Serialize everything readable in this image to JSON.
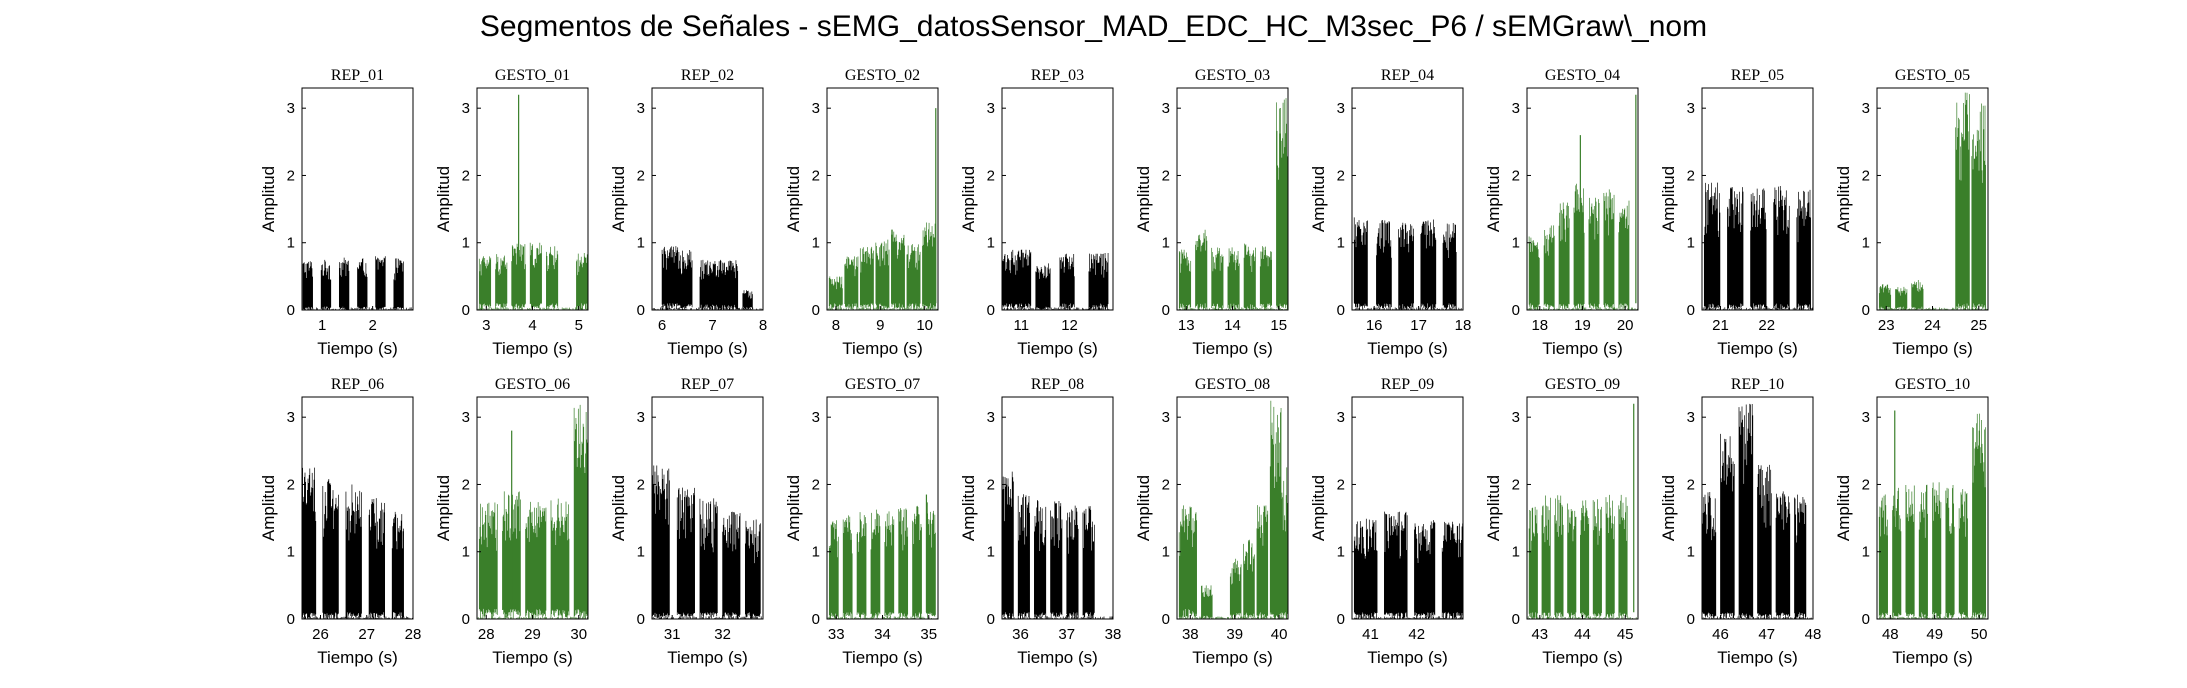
{
  "figure": {
    "title": "Segmentos de Señales - sEMG_datosSensor_MAD_EDC_HC_M3sec_P6 / sEMGraw\\_nom",
    "colors": {
      "rep": "#000000",
      "gesto": "#3a7f2a",
      "axis": "#000000"
    }
  },
  "chart_data": [
    {
      "type": "line",
      "title": "REP_01",
      "xlabel": "Tiempo (s)",
      "ylabel": "Amplitud",
      "xlim": [
        0.6,
        2.8
      ],
      "ylim": [
        0,
        3.3
      ],
      "xticks": [
        1,
        2
      ],
      "yticks": [
        0,
        1,
        2,
        3
      ],
      "color": "#000000",
      "bursts": [
        [
          0.62,
          0.82,
          0.75,
          0.05
        ],
        [
          0.98,
          1.18,
          0.75,
          0.05
        ],
        [
          1.34,
          1.54,
          0.78,
          0.05
        ],
        [
          1.7,
          1.9,
          0.78,
          0.05
        ],
        [
          2.06,
          2.26,
          0.8,
          0.05
        ],
        [
          2.42,
          2.62,
          0.78,
          0.05
        ]
      ]
    },
    {
      "type": "line",
      "title": "GESTO_01",
      "xlabel": "Tiempo (s)",
      "ylabel": "Amplitud",
      "xlim": [
        2.8,
        5.2
      ],
      "ylim": [
        0,
        3.3
      ],
      "xticks": [
        3,
        4,
        5
      ],
      "yticks": [
        0,
        1,
        2,
        3
      ],
      "color": "#3a7f2a",
      "bursts": [
        [
          2.85,
          3.1,
          0.82,
          0.1
        ],
        [
          3.2,
          3.45,
          0.85,
          0.1
        ],
        [
          3.55,
          3.85,
          1.0,
          0.1
        ],
        [
          3.95,
          4.2,
          1.0,
          0.1
        ],
        [
          4.3,
          4.55,
          0.95,
          0.1
        ],
        [
          4.95,
          5.2,
          0.85,
          0.1
        ]
      ],
      "spikes": [
        [
          3.7,
          3.2
        ]
      ]
    },
    {
      "type": "line",
      "title": "REP_02",
      "xlabel": "Tiempo (s)",
      "ylabel": "Amplitud",
      "xlim": [
        5.8,
        8.0
      ],
      "ylim": [
        0,
        3.3
      ],
      "xticks": [
        6,
        7,
        8
      ],
      "yticks": [
        0,
        1,
        2,
        3
      ],
      "color": "#000000",
      "bursts": [
        [
          6.0,
          6.6,
          0.95,
          0.1
        ],
        [
          6.75,
          7.5,
          0.75,
          0.08
        ],
        [
          7.6,
          7.8,
          0.3,
          0.05
        ]
      ]
    },
    {
      "type": "line",
      "title": "GESTO_02",
      "xlabel": "Tiempo (s)",
      "ylabel": "Amplitud",
      "xlim": [
        7.8,
        10.3
      ],
      "ylim": [
        0,
        3.3
      ],
      "xticks": [
        8,
        9,
        10
      ],
      "yticks": [
        0,
        1,
        2,
        3
      ],
      "color": "#3a7f2a",
      "bursts": [
        [
          7.85,
          8.15,
          0.5,
          0.1
        ],
        [
          8.2,
          8.5,
          0.8,
          0.1
        ],
        [
          8.55,
          8.85,
          0.95,
          0.1
        ],
        [
          8.9,
          9.2,
          1.05,
          0.1
        ],
        [
          9.25,
          9.55,
          1.2,
          0.1
        ],
        [
          9.6,
          9.9,
          1.0,
          0.1
        ],
        [
          9.95,
          10.25,
          1.3,
          0.1
        ]
      ],
      "spikes": [
        [
          10.25,
          3.0
        ]
      ]
    },
    {
      "type": "line",
      "title": "REP_03",
      "xlabel": "Tiempo (s)",
      "ylabel": "Amplitud",
      "xlim": [
        10.6,
        12.9
      ],
      "ylim": [
        0,
        3.3
      ],
      "xticks": [
        11,
        12
      ],
      "yticks": [
        0,
        1,
        2,
        3
      ],
      "color": "#000000",
      "bursts": [
        [
          10.6,
          11.2,
          0.9,
          0.1
        ],
        [
          11.3,
          11.6,
          0.7,
          0.05
        ],
        [
          11.8,
          12.1,
          0.85,
          0.1
        ],
        [
          12.4,
          12.8,
          0.85,
          0.1
        ]
      ]
    },
    {
      "type": "line",
      "title": "GESTO_03",
      "xlabel": "Tiempo (s)",
      "ylabel": "Amplitud",
      "xlim": [
        12.8,
        15.2
      ],
      "ylim": [
        0,
        3.3
      ],
      "xticks": [
        13,
        14,
        15
      ],
      "yticks": [
        0,
        1,
        2,
        3
      ],
      "color": "#3a7f2a",
      "bursts": [
        [
          12.85,
          13.1,
          0.9,
          0.1
        ],
        [
          13.2,
          13.45,
          1.2,
          0.1
        ],
        [
          13.55,
          13.8,
          0.95,
          0.1
        ],
        [
          13.9,
          14.15,
          0.95,
          0.1
        ],
        [
          14.25,
          14.5,
          1.0,
          0.1
        ],
        [
          14.6,
          14.85,
          0.95,
          0.1
        ],
        [
          14.95,
          15.2,
          3.25,
          0.1
        ]
      ]
    },
    {
      "type": "line",
      "title": "REP_04",
      "xlabel": "Tiempo (s)",
      "ylabel": "Amplitud",
      "xlim": [
        15.5,
        18.0
      ],
      "ylim": [
        0,
        3.3
      ],
      "xticks": [
        16,
        17,
        18
      ],
      "yticks": [
        0,
        1,
        2,
        3
      ],
      "color": "#000000",
      "bursts": [
        [
          15.55,
          15.85,
          1.4,
          0.1
        ],
        [
          16.05,
          16.4,
          1.35,
          0.1
        ],
        [
          16.55,
          16.9,
          1.3,
          0.1
        ],
        [
          17.05,
          17.4,
          1.35,
          0.1
        ],
        [
          17.55,
          17.85,
          1.3,
          0.1
        ]
      ]
    },
    {
      "type": "line",
      "title": "GESTO_04",
      "xlabel": "Tiempo (s)",
      "ylabel": "Amplitud",
      "xlim": [
        17.7,
        20.3
      ],
      "ylim": [
        0,
        3.3
      ],
      "xticks": [
        18,
        19,
        20
      ],
      "yticks": [
        0,
        1,
        2,
        3
      ],
      "color": "#3a7f2a",
      "bursts": [
        [
          17.75,
          18.0,
          1.1,
          0.1
        ],
        [
          18.1,
          18.35,
          1.3,
          0.1
        ],
        [
          18.45,
          18.7,
          1.6,
          0.1
        ],
        [
          18.8,
          19.05,
          1.9,
          0.1
        ],
        [
          19.15,
          19.4,
          1.7,
          0.1
        ],
        [
          19.5,
          19.75,
          1.8,
          0.1
        ],
        [
          19.85,
          20.1,
          1.7,
          0.1
        ]
      ],
      "spikes": [
        [
          18.95,
          2.6
        ],
        [
          20.25,
          3.2
        ]
      ]
    },
    {
      "type": "line",
      "title": "REP_05",
      "xlabel": "Tiempo (s)",
      "ylabel": "Amplitud",
      "xlim": [
        20.6,
        23.0
      ],
      "ylim": [
        0,
        3.3
      ],
      "xticks": [
        21,
        22
      ],
      "yticks": [
        0,
        1,
        2,
        3
      ],
      "color": "#000000",
      "bursts": [
        [
          20.65,
          21.0,
          1.9,
          0.1
        ],
        [
          21.15,
          21.5,
          1.85,
          0.1
        ],
        [
          21.65,
          22.0,
          1.9,
          0.1
        ],
        [
          22.15,
          22.5,
          1.85,
          0.1
        ],
        [
          22.65,
          22.95,
          1.8,
          0.1
        ]
      ]
    },
    {
      "type": "line",
      "title": "GESTO_05",
      "xlabel": "Tiempo (s)",
      "ylabel": "Amplitud",
      "xlim": [
        22.8,
        25.2
      ],
      "ylim": [
        0,
        3.3
      ],
      "xticks": [
        23,
        24,
        25
      ],
      "yticks": [
        0,
        1,
        2,
        3
      ],
      "color": "#3a7f2a",
      "bursts": [
        [
          22.85,
          23.1,
          0.4,
          0.05
        ],
        [
          23.2,
          23.45,
          0.35,
          0.05
        ],
        [
          23.55,
          23.8,
          0.45,
          0.05
        ],
        [
          24.5,
          24.8,
          3.25,
          0.1
        ],
        [
          24.85,
          25.15,
          3.2,
          0.1
        ]
      ]
    },
    {
      "type": "line",
      "title": "REP_06",
      "xlabel": "Tiempo (s)",
      "ylabel": "Amplitud",
      "xlim": [
        25.6,
        28.0
      ],
      "ylim": [
        0,
        3.3
      ],
      "xticks": [
        26,
        27,
        28
      ],
      "yticks": [
        0,
        1,
        2,
        3
      ],
      "color": "#000000",
      "bursts": [
        [
          25.6,
          25.9,
          2.3,
          0.1
        ],
        [
          26.05,
          26.4,
          2.1,
          0.1
        ],
        [
          26.55,
          26.9,
          2.0,
          0.1
        ],
        [
          27.05,
          27.4,
          1.8,
          0.1
        ],
        [
          27.55,
          27.8,
          1.6,
          0.1
        ]
      ]
    },
    {
      "type": "line",
      "title": "GESTO_06",
      "xlabel": "Tiempo (s)",
      "ylabel": "Amplitud",
      "xlim": [
        27.8,
        30.2
      ],
      "ylim": [
        0,
        3.3
      ],
      "xticks": [
        28,
        29,
        30
      ],
      "yticks": [
        0,
        1,
        2,
        3
      ],
      "color": "#3a7f2a",
      "bursts": [
        [
          27.85,
          28.25,
          1.75,
          0.15
        ],
        [
          28.35,
          28.75,
          1.9,
          0.15
        ],
        [
          28.85,
          29.3,
          1.75,
          0.15
        ],
        [
          29.4,
          29.8,
          1.8,
          0.15
        ],
        [
          29.9,
          30.2,
          3.2,
          0.15
        ]
      ],
      "spikes": [
        [
          28.55,
          2.8
        ]
      ]
    },
    {
      "type": "line",
      "title": "REP_07",
      "xlabel": "Tiempo (s)",
      "ylabel": "Amplitud",
      "xlim": [
        30.6,
        32.8
      ],
      "ylim": [
        0,
        3.3
      ],
      "xticks": [
        31,
        32
      ],
      "yticks": [
        0,
        1,
        2,
        3
      ],
      "color": "#000000",
      "bursts": [
        [
          30.6,
          30.95,
          2.3,
          0.1
        ],
        [
          31.1,
          31.45,
          2.0,
          0.1
        ],
        [
          31.55,
          31.9,
          1.8,
          0.1
        ],
        [
          32.0,
          32.35,
          1.6,
          0.1
        ],
        [
          32.45,
          32.75,
          1.5,
          0.1
        ]
      ]
    },
    {
      "type": "line",
      "title": "GESTO_07",
      "xlabel": "Tiempo (s)",
      "ylabel": "Amplitud",
      "xlim": [
        32.8,
        35.2
      ],
      "ylim": [
        0,
        3.3
      ],
      "xticks": [
        33,
        34,
        35
      ],
      "yticks": [
        0,
        1,
        2,
        3
      ],
      "color": "#3a7f2a",
      "bursts": [
        [
          32.85,
          33.05,
          1.5,
          0.1
        ],
        [
          33.15,
          33.35,
          1.55,
          0.1
        ],
        [
          33.45,
          33.65,
          1.6,
          0.1
        ],
        [
          33.75,
          33.95,
          1.65,
          0.1
        ],
        [
          34.05,
          34.25,
          1.6,
          0.1
        ],
        [
          34.35,
          34.55,
          1.65,
          0.1
        ],
        [
          34.65,
          34.85,
          1.7,
          0.1
        ],
        [
          34.95,
          35.15,
          1.75,
          0.1
        ]
      ],
      "spikes": [
        [
          34.95,
          1.85
        ]
      ]
    },
    {
      "type": "line",
      "title": "REP_08",
      "xlabel": "Tiempo (s)",
      "ylabel": "Amplitud",
      "xlim": [
        35.6,
        38.0
      ],
      "ylim": [
        0,
        3.3
      ],
      "xticks": [
        36,
        37,
        38
      ],
      "yticks": [
        0,
        1,
        2,
        3
      ],
      "color": "#000000",
      "bursts": [
        [
          35.6,
          35.85,
          2.2,
          0.1
        ],
        [
          35.95,
          36.2,
          1.9,
          0.1
        ],
        [
          36.3,
          36.55,
          1.8,
          0.1
        ],
        [
          36.65,
          36.9,
          1.8,
          0.1
        ],
        [
          37.0,
          37.25,
          1.7,
          0.1
        ],
        [
          37.35,
          37.6,
          1.7,
          0.1
        ]
      ]
    },
    {
      "type": "line",
      "title": "GESTO_08",
      "xlabel": "Tiempo (s)",
      "ylabel": "Amplitud",
      "xlim": [
        37.7,
        40.2
      ],
      "ylim": [
        0,
        3.3
      ],
      "xticks": [
        38,
        39,
        40
      ],
      "yticks": [
        0,
        1,
        2,
        3
      ],
      "color": "#3a7f2a",
      "bursts": [
        [
          37.75,
          38.15,
          1.7,
          0.15
        ],
        [
          38.25,
          38.5,
          0.5,
          0.05
        ],
        [
          38.9,
          39.15,
          0.9,
          0.1
        ],
        [
          39.2,
          39.45,
          1.2,
          0.1
        ],
        [
          39.5,
          39.75,
          1.7,
          0.1
        ],
        [
          39.8,
          40.05,
          3.25,
          0.1
        ],
        [
          40.05,
          40.2,
          2.3,
          0.1
        ]
      ]
    },
    {
      "type": "line",
      "title": "REP_09",
      "xlabel": "Tiempo (s)",
      "ylabel": "Amplitud",
      "xlim": [
        40.6,
        43.0
      ],
      "ylim": [
        0,
        3.3
      ],
      "xticks": [
        41,
        42
      ],
      "yticks": [
        0,
        1,
        2,
        3
      ],
      "color": "#000000",
      "bursts": [
        [
          40.65,
          41.15,
          1.5,
          0.1
        ],
        [
          41.3,
          41.8,
          1.6,
          0.1
        ],
        [
          41.95,
          42.4,
          1.5,
          0.1
        ],
        [
          42.55,
          43.0,
          1.45,
          0.1
        ]
      ]
    },
    {
      "type": "line",
      "title": "GESTO_09",
      "xlabel": "Tiempo (s)",
      "ylabel": "Amplitud",
      "xlim": [
        42.7,
        45.3
      ],
      "ylim": [
        0,
        3.3
      ],
      "xticks": [
        43,
        44,
        45
      ],
      "yticks": [
        0,
        1,
        2,
        3
      ],
      "color": "#3a7f2a",
      "bursts": [
        [
          42.75,
          42.95,
          1.7,
          0.1
        ],
        [
          43.05,
          43.25,
          1.9,
          0.1
        ],
        [
          43.35,
          43.55,
          1.85,
          0.1
        ],
        [
          43.65,
          43.85,
          1.8,
          0.1
        ],
        [
          43.95,
          44.15,
          1.8,
          0.1
        ],
        [
          44.25,
          44.45,
          1.8,
          0.1
        ],
        [
          44.55,
          44.75,
          1.85,
          0.1
        ],
        [
          44.85,
          45.05,
          1.85,
          0.1
        ]
      ],
      "spikes": [
        [
          45.2,
          3.2
        ]
      ]
    },
    {
      "type": "line",
      "title": "REP_10",
      "xlabel": "Tiempo (s)",
      "ylabel": "Amplitud",
      "xlim": [
        45.6,
        48.0
      ],
      "ylim": [
        0,
        3.3
      ],
      "xticks": [
        46,
        47,
        48
      ],
      "yticks": [
        0,
        1,
        2,
        3
      ],
      "color": "#000000",
      "bursts": [
        [
          45.6,
          45.9,
          1.9,
          0.1
        ],
        [
          46.0,
          46.3,
          2.8,
          0.1
        ],
        [
          46.4,
          46.7,
          3.2,
          0.1
        ],
        [
          46.8,
          47.1,
          2.3,
          0.1
        ],
        [
          47.2,
          47.5,
          1.9,
          0.1
        ],
        [
          47.6,
          47.85,
          1.85,
          0.1
        ]
      ]
    },
    {
      "type": "line",
      "title": "GESTO_10",
      "xlabel": "Tiempo (s)",
      "ylabel": "Amplitud",
      "xlim": [
        47.7,
        50.2
      ],
      "ylim": [
        0,
        3.3
      ],
      "xticks": [
        48,
        49,
        50
      ],
      "yticks": [
        0,
        1,
        2,
        3
      ],
      "color": "#3a7f2a",
      "bursts": [
        [
          47.75,
          47.95,
          1.85,
          0.1
        ],
        [
          48.05,
          48.25,
          2.0,
          0.1
        ],
        [
          48.35,
          48.55,
          2.0,
          0.1
        ],
        [
          48.65,
          48.85,
          2.0,
          0.1
        ],
        [
          48.95,
          49.15,
          2.05,
          0.1
        ],
        [
          49.25,
          49.45,
          2.0,
          0.1
        ],
        [
          49.55,
          49.75,
          2.1,
          0.1
        ],
        [
          49.85,
          50.15,
          3.25,
          0.1
        ]
      ],
      "spikes": [
        [
          48.1,
          3.1
        ]
      ]
    }
  ]
}
